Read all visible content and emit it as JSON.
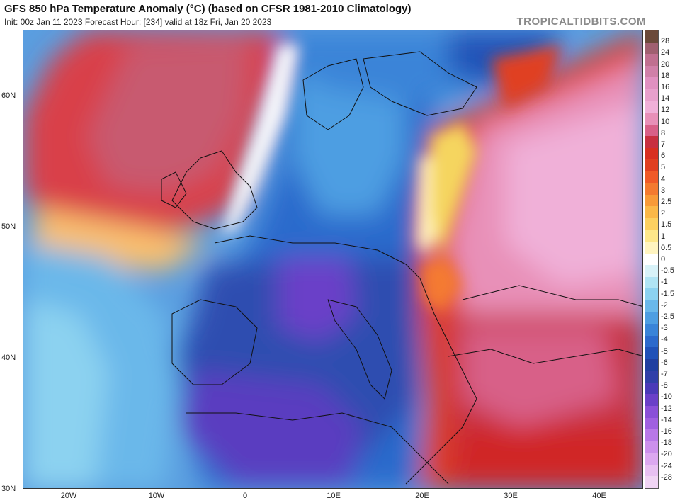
{
  "header": {
    "title": "GFS 850 hPa Temperature Anomaly (°C) (based on CFSR 1981-2010 Climatology)",
    "subtitle": "Init: 00z Jan 11 2023   Forecast Hour: [234]   valid at 18z Fri, Jan 20 2023",
    "brand": "TROPICALTIDBITS.COM"
  },
  "axes": {
    "lat_labels": [
      "60N",
      "50N",
      "40N",
      "30N"
    ],
    "lon_labels": [
      "20W",
      "10W",
      "0",
      "10E",
      "20E",
      "30E",
      "40E"
    ]
  },
  "colorbar": {
    "labels": [
      "28",
      "24",
      "20",
      "18",
      "16",
      "14",
      "12",
      "10",
      "8",
      "7",
      "6",
      "5",
      "4",
      "3",
      "2.5",
      "2",
      "1.5",
      "1",
      "0.5",
      "0",
      "-0.5",
      "-1",
      "-1.5",
      "-2",
      "-2.5",
      "-3",
      "-4",
      "-5",
      "-6",
      "-7",
      "-8",
      "-10",
      "-12",
      "-14",
      "-16",
      "-18",
      "-20",
      "-24",
      "-28"
    ],
    "colors": [
      "#6b4a3a",
      "#a06070",
      "#c07090",
      "#d080a8",
      "#e090c0",
      "#e8a0cc",
      "#f0b0d8",
      "#e890b8",
      "#d86088",
      "#c83040",
      "#d83020",
      "#e04020",
      "#f05a28",
      "#f47a30",
      "#f89a38",
      "#fbb848",
      "#fcd060",
      "#fde78a",
      "#fff4c0",
      "#ffffff",
      "#d8f2f8",
      "#b0e4f4",
      "#8cd2f0",
      "#6ab8ea",
      "#4e9ee2",
      "#3a84d8",
      "#2c6acc",
      "#2052b8",
      "#2040a0",
      "#3040a8",
      "#4a3ab8",
      "#6a40c8",
      "#8a50d8",
      "#a060e0",
      "#b878e8",
      "#cc90ec",
      "#dca8f0",
      "#e8c0f2",
      "#f0d4f4"
    ]
  }
}
